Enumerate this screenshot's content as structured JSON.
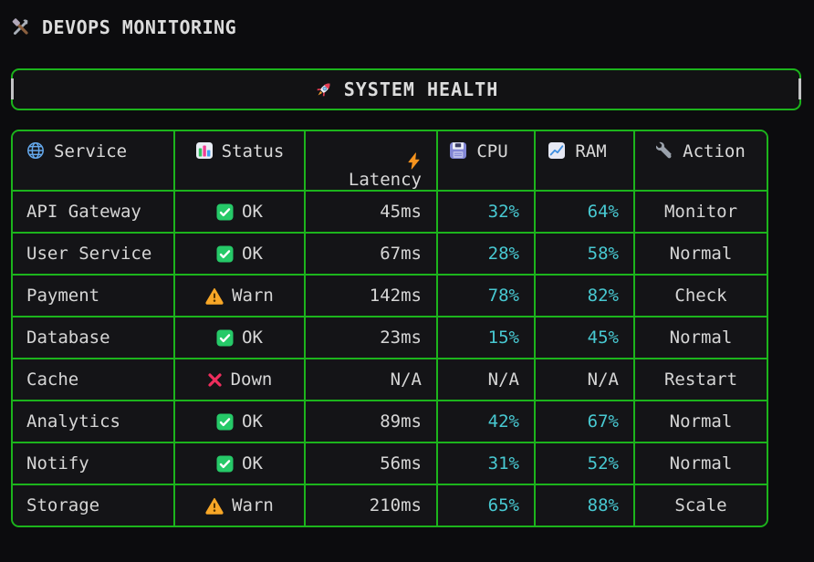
{
  "app": {
    "title": "DEVOPS MONITORING",
    "icon": "hammer-wrench-icon"
  },
  "banner": {
    "title": "SYSTEM HEALTH",
    "icon": "rocket-icon"
  },
  "colors": {
    "background": "#0c0c0e",
    "panel": "#141417",
    "border_green": "#1cb41c",
    "text": "#d6d6d6",
    "accent_cyan": "#48c9d2",
    "status_ok_green": "#26c968",
    "status_warn_orange": "#f8a727",
    "status_down_red": "#ee2e5d"
  },
  "table": {
    "columns": [
      {
        "label": "Service",
        "icon": "globe-icon"
      },
      {
        "label": "Status",
        "icon": "bar-chart-icon"
      },
      {
        "label": "Latency",
        "icon": "lightning-icon"
      },
      {
        "label": "CPU",
        "icon": "floppy-disk-icon"
      },
      {
        "label": "RAM",
        "icon": "chart-up-icon"
      },
      {
        "label": "Action",
        "icon": "wrench-icon"
      }
    ],
    "rows": [
      {
        "service": "API Gateway",
        "status": "OK",
        "status_icon": "check-icon",
        "latency": "45ms",
        "cpu": "32%",
        "ram": "64%",
        "action": "Monitor"
      },
      {
        "service": "User Service",
        "status": "OK",
        "status_icon": "check-icon",
        "latency": "67ms",
        "cpu": "28%",
        "ram": "58%",
        "action": "Normal"
      },
      {
        "service": "Payment",
        "status": "Warn",
        "status_icon": "warning-icon",
        "latency": "142ms",
        "cpu": "78%",
        "ram": "82%",
        "action": "Check"
      },
      {
        "service": "Database",
        "status": "OK",
        "status_icon": "check-icon",
        "latency": "23ms",
        "cpu": "15%",
        "ram": "45%",
        "action": "Normal"
      },
      {
        "service": "Cache",
        "status": "Down",
        "status_icon": "cross-icon",
        "latency": "N/A",
        "cpu": "N/A",
        "ram": "N/A",
        "action": "Restart"
      },
      {
        "service": "Analytics",
        "status": "OK",
        "status_icon": "check-icon",
        "latency": "89ms",
        "cpu": "42%",
        "ram": "67%",
        "action": "Normal"
      },
      {
        "service": "Notify",
        "status": "OK",
        "status_icon": "check-icon",
        "latency": "56ms",
        "cpu": "31%",
        "ram": "52%",
        "action": "Normal"
      },
      {
        "service": "Storage",
        "status": "Warn",
        "status_icon": "warning-icon",
        "latency": "210ms",
        "cpu": "65%",
        "ram": "88%",
        "action": "Scale"
      }
    ]
  }
}
